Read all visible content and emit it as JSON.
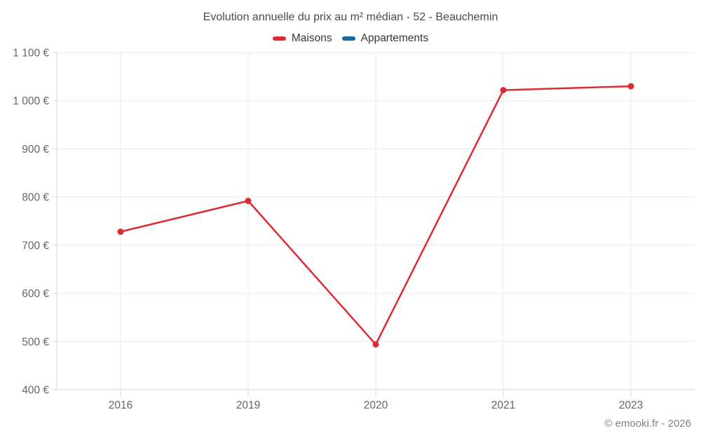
{
  "header": {
    "title": "Evolution annuelle du prix au m² médian - 52 - Beauchemin"
  },
  "legend": {
    "items": [
      {
        "label": "Maisons",
        "color": "#dd2b33",
        "has_data": true
      },
      {
        "label": "Appartements",
        "color": "#17699c",
        "has_data": false
      }
    ]
  },
  "footer": {
    "copyright": "© emooki.fr - 2026"
  },
  "chart_data": {
    "type": "line",
    "title": "Evolution annuelle du prix au m² médian - 52 - Beauchemin",
    "categories": [
      "2016",
      "2019",
      "2020",
      "2021",
      "2023"
    ],
    "series": [
      {
        "name": "Maisons",
        "color": "#dd2b33",
        "values": [
          728,
          792,
          494,
          1022,
          1030
        ]
      },
      {
        "name": "Appartements",
        "color": "#17699c",
        "values": []
      }
    ],
    "xlabel": "",
    "ylabel": "",
    "ylim": [
      400,
      1100
    ],
    "yticks": [
      400,
      500,
      600,
      700,
      800,
      900,
      1000,
      1100
    ],
    "ytick_labels": [
      "400 €",
      "500 €",
      "600 €",
      "700 €",
      "800 €",
      "900 €",
      "1 000 €",
      "1 100 €"
    ],
    "grid": true,
    "legend_position": "top",
    "marker": "circle",
    "marker_radius": 4.5,
    "line_width": 2.5
  },
  "style": {
    "grid_color": "#e9e9e9",
    "axis_color": "#d6d6d6",
    "tick_label_color": "#666666",
    "title_color": "#4a4a4a",
    "legend_text_color": "#383838",
    "copyright_color": "#828282",
    "background": "#ffffff"
  }
}
